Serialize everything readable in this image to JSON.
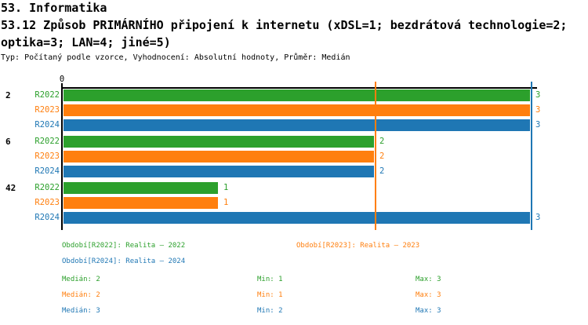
{
  "header": {
    "section_title": "53. Informatika",
    "question_title_line1": "53.12 Způsob PRIMÁRNÍHO připojení k internetu (xDSL=1; bezdrátová technologie=2;",
    "question_title_line2": "optika=3; LAN=4; jiné=5)",
    "meta_line": "Typ: Počítaný podle vzorce, Vyhodnocení: Absolutní hodnoty, Průměr: Medián"
  },
  "colors": {
    "green": "#2ca02c",
    "orange": "#ff7f0e",
    "blue": "#1f77b4",
    "axis": "#000000",
    "background": "#ffffff"
  },
  "chart_data": {
    "type": "bar",
    "orientation": "horizontal",
    "title": "53.12 Způsob PRIMÁRNÍHO připojení k internetu (xDSL=1; bezdrátová technologie=2; optika=3; LAN=4; jiné=5)",
    "categories": [
      "2",
      "6",
      "42"
    ],
    "series": [
      {
        "name": "R2022",
        "color": "#2ca02c",
        "values": [
          3,
          2,
          1
        ],
        "median": 2,
        "min": 1,
        "max": 3
      },
      {
        "name": "R2023",
        "color": "#ff7f0e",
        "values": [
          3,
          2,
          1
        ],
        "median": 2,
        "min": 1,
        "max": 3
      },
      {
        "name": "R2024",
        "color": "#1f77b4",
        "values": [
          3,
          2,
          3
        ],
        "median": 3,
        "min": 2,
        "max": 3
      }
    ],
    "x_axis": {
      "min": 0,
      "max": 3,
      "tick_labels": [
        "0"
      ]
    },
    "bar_value_labels": true,
    "grid": false,
    "legend_position": "bottom",
    "reference_lines": [
      {
        "series": "R2023",
        "value": 2,
        "color": "#ff7f0e"
      },
      {
        "series": "R2024",
        "value": 3,
        "color": "#1f77b4"
      }
    ]
  },
  "legend": {
    "periods": [
      {
        "label": "Období[R2022]: Realita – 2022",
        "color": "#2ca02c"
      },
      {
        "label": "Období[R2023]: Realita – 2023",
        "color": "#ff7f0e"
      },
      {
        "label": "Období[R2024]: Realita – 2024",
        "color": "#1f77b4"
      }
    ],
    "stats": [
      {
        "median": "Medián: 2",
        "min": "Min: 1",
        "max": "Max: 3",
        "color": "#2ca02c"
      },
      {
        "median": "Medián: 2",
        "min": "Min: 1",
        "max": "Max: 3",
        "color": "#ff7f0e"
      },
      {
        "median": "Medián: 3",
        "min": "Min: 2",
        "max": "Max: 3",
        "color": "#1f77b4"
      }
    ]
  }
}
